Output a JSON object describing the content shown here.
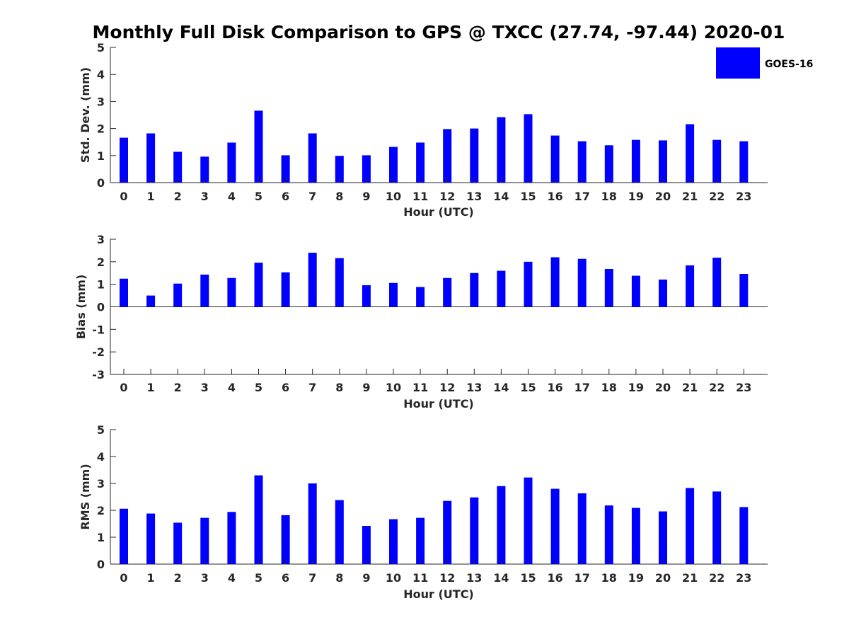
{
  "title": "Monthly Full Disk Comparison to GPS @ TXCC (27.74, -97.44) 2020-01",
  "legend": {
    "label": "GOES-16",
    "color": "#0000ff",
    "placement": "top-right"
  },
  "chart_data": [
    {
      "type": "bar",
      "ylabel": "Std. Dev. (mm)",
      "xlabel": "Hour (UTC)",
      "categories": [
        "0",
        "1",
        "2",
        "3",
        "4",
        "5",
        "6",
        "7",
        "8",
        "9",
        "10",
        "11",
        "12",
        "13",
        "14",
        "15",
        "16",
        "17",
        "18",
        "19",
        "20",
        "21",
        "22",
        "23"
      ],
      "series": [
        {
          "name": "GOES-16",
          "values": [
            1.66,
            1.82,
            1.14,
            0.96,
            1.48,
            2.66,
            1.01,
            1.82,
            0.99,
            1.01,
            1.32,
            1.48,
            1.98,
            2.0,
            2.42,
            2.53,
            1.74,
            1.53,
            1.38,
            1.58,
            1.56,
            2.16,
            1.58,
            1.53
          ]
        }
      ],
      "ylim": [
        0,
        5
      ],
      "yticks": [
        0,
        1,
        2,
        3,
        4,
        5
      ],
      "grid": false
    },
    {
      "type": "bar",
      "ylabel": "Bias (mm)",
      "xlabel": "Hour (UTC)",
      "categories": [
        "0",
        "1",
        "2",
        "3",
        "4",
        "5",
        "6",
        "7",
        "8",
        "9",
        "10",
        "11",
        "12",
        "13",
        "14",
        "15",
        "16",
        "17",
        "18",
        "19",
        "20",
        "21",
        "22",
        "23"
      ],
      "series": [
        {
          "name": "GOES-16",
          "values": [
            1.25,
            0.5,
            1.03,
            1.43,
            1.28,
            1.96,
            1.53,
            2.4,
            2.16,
            0.96,
            1.06,
            0.88,
            1.28,
            1.5,
            1.6,
            2.0,
            2.2,
            2.13,
            1.68,
            1.38,
            1.21,
            1.84,
            2.18,
            1.46
          ]
        }
      ],
      "ylim": [
        -3,
        3
      ],
      "yticks": [
        -3,
        -2,
        -1,
        0,
        1,
        2,
        3
      ],
      "grid": false
    },
    {
      "type": "bar",
      "ylabel": "RMS (mm)",
      "xlabel": "Hour (UTC)",
      "categories": [
        "0",
        "1",
        "2",
        "3",
        "4",
        "5",
        "6",
        "7",
        "8",
        "9",
        "10",
        "11",
        "12",
        "13",
        "14",
        "15",
        "16",
        "17",
        "18",
        "19",
        "20",
        "21",
        "22",
        "23"
      ],
      "series": [
        {
          "name": "GOES-16",
          "values": [
            2.06,
            1.88,
            1.54,
            1.72,
            1.94,
            3.3,
            1.82,
            3.0,
            2.38,
            1.42,
            1.67,
            1.72,
            2.35,
            2.48,
            2.9,
            3.22,
            2.8,
            2.63,
            2.18,
            2.09,
            1.96,
            2.83,
            2.7,
            2.12
          ]
        }
      ],
      "ylim": [
        0,
        5
      ],
      "yticks": [
        0,
        1,
        2,
        3,
        4,
        5
      ],
      "grid": false
    }
  ]
}
